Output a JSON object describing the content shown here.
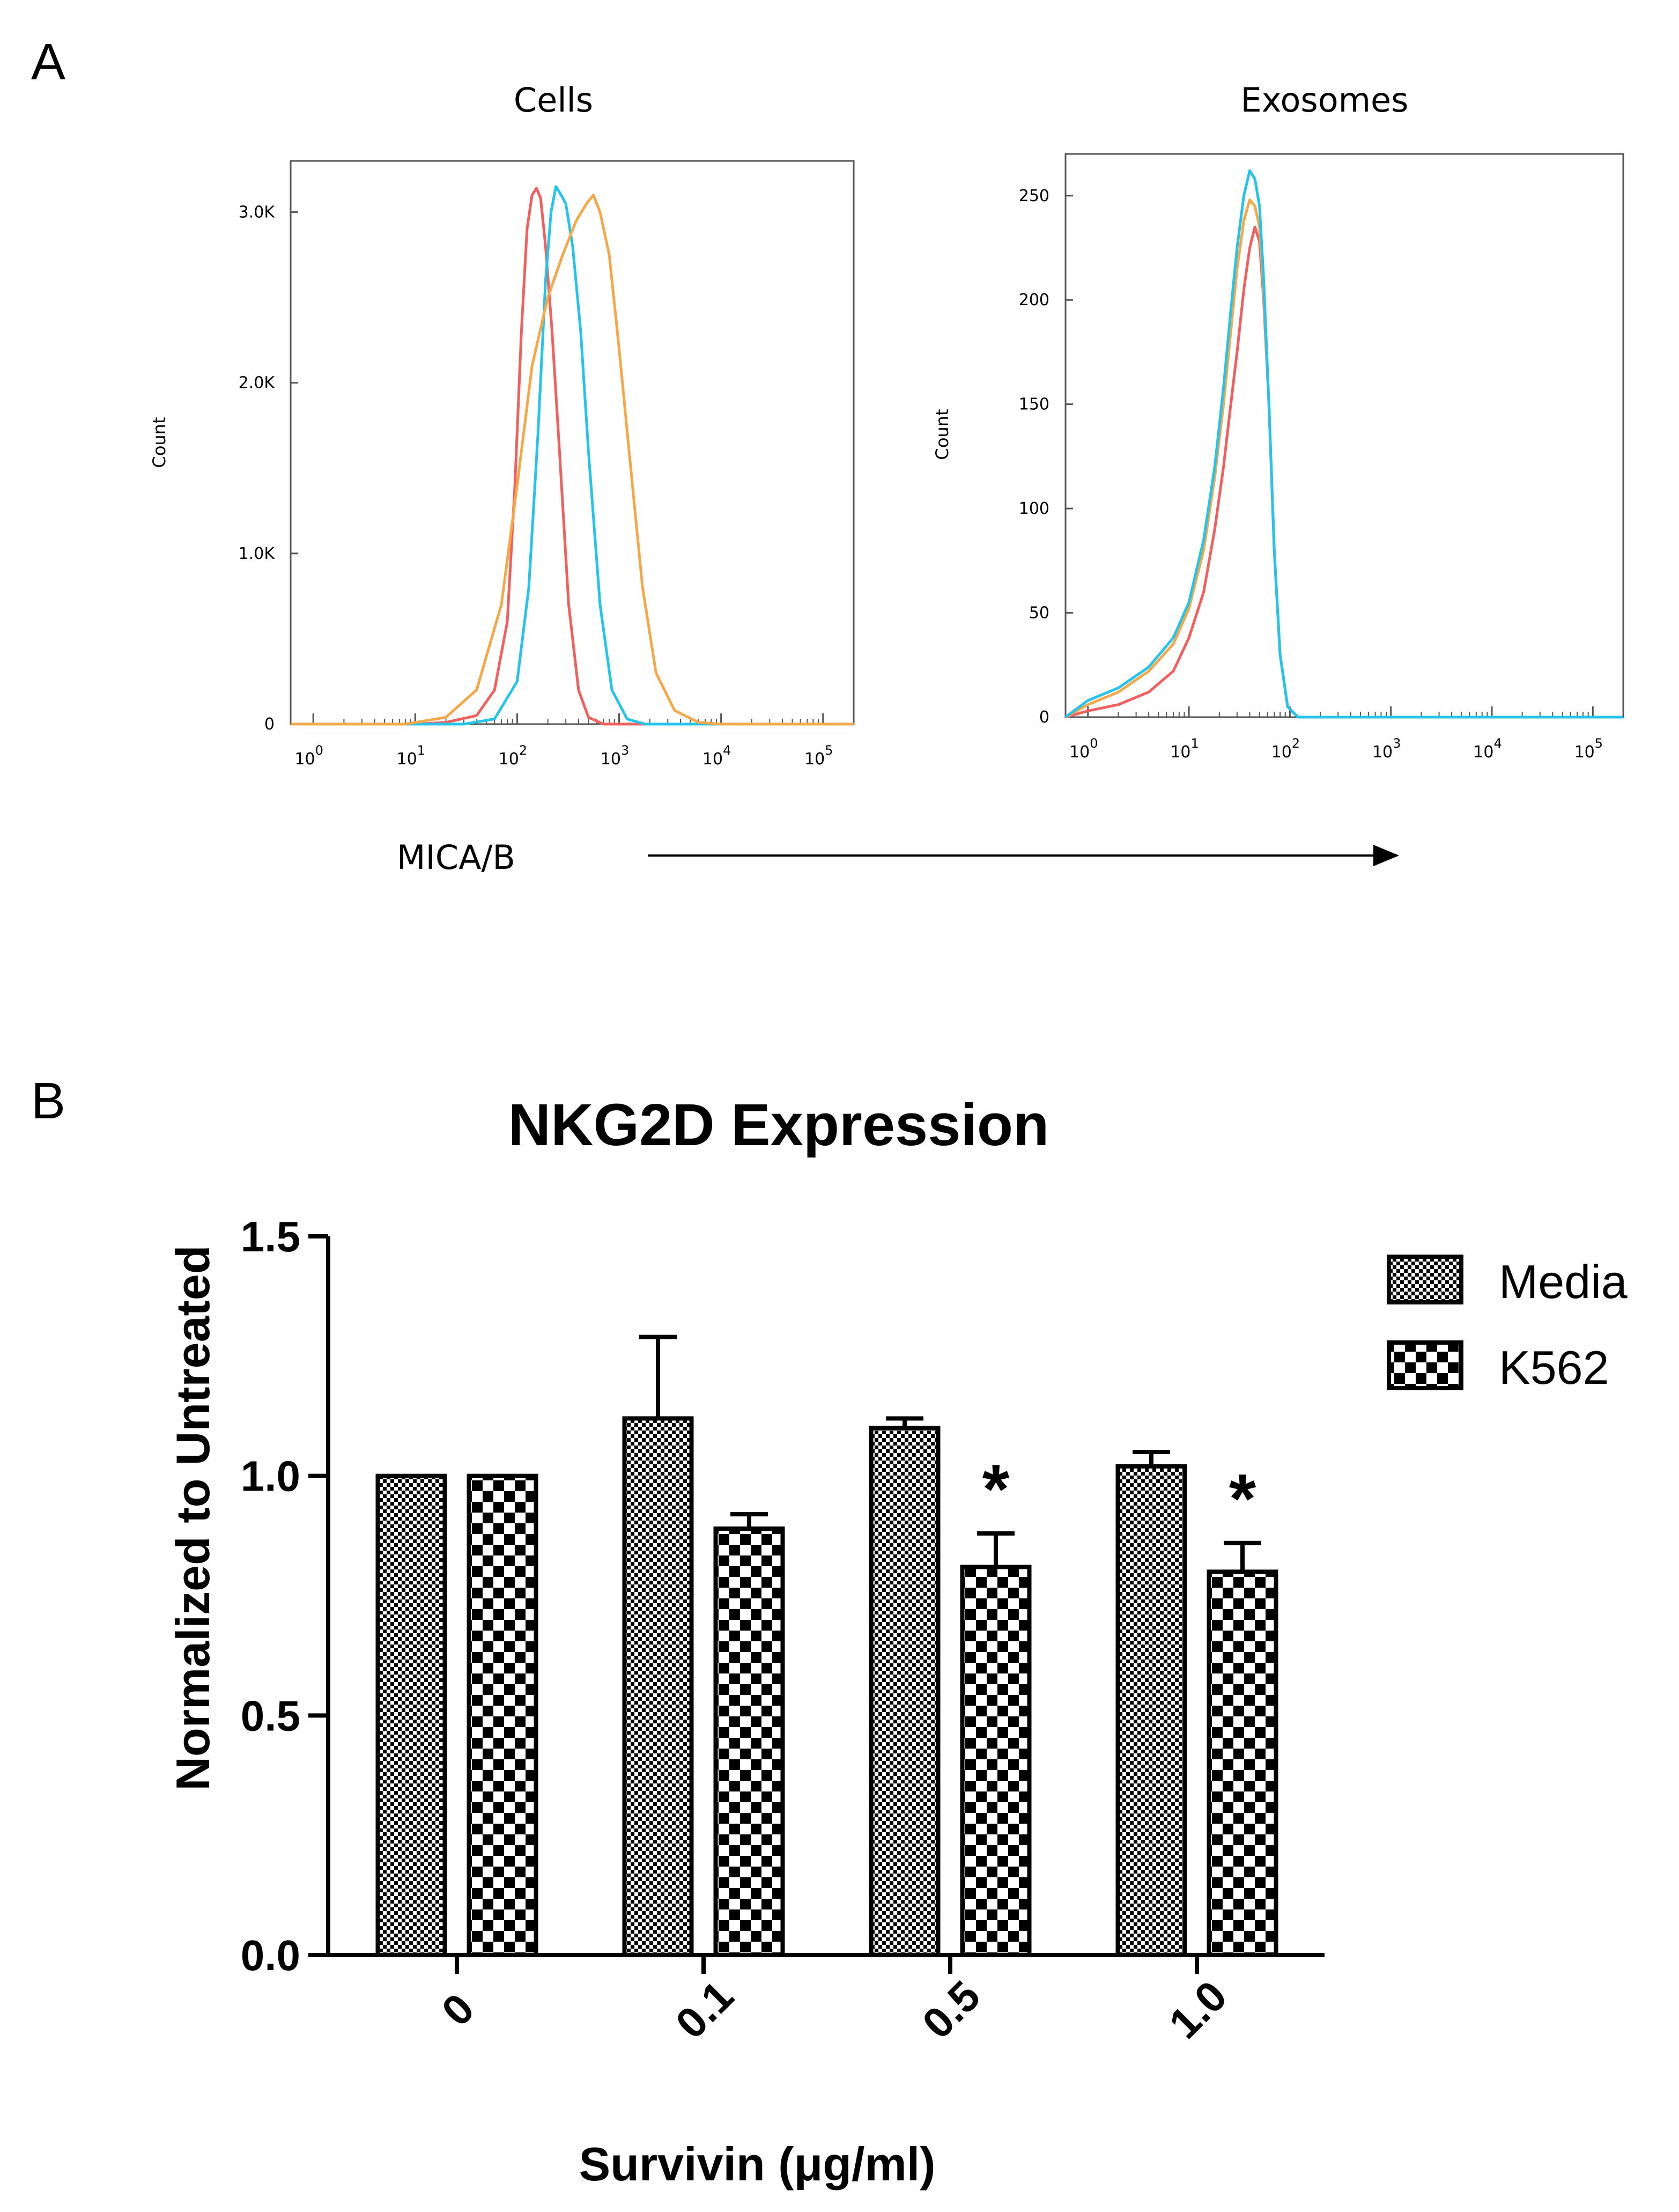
{
  "panel_a_label": "A",
  "panel_b_label": "B",
  "x_axis_label": "MICA/B",
  "chart_data": [
    {
      "type": "line",
      "chart": "flow-histogram",
      "title": "Cells",
      "ylabel": "Count",
      "x_scale": "log10",
      "xlim": [
        0.6,
        200000
      ],
      "ylim": [
        0,
        3300
      ],
      "y_ticks": [
        {
          "v": 0,
          "label": "0"
        },
        {
          "v": 1000,
          "label": "1.0K"
        },
        {
          "v": 2000,
          "label": "2.0K"
        },
        {
          "v": 3000,
          "label": "3.0K"
        }
      ],
      "x_ticks": [
        {
          "v": 1,
          "base": "10",
          "exp": "0"
        },
        {
          "v": 10,
          "base": "10",
          "exp": "1"
        },
        {
          "v": 100,
          "base": "10",
          "exp": "2"
        },
        {
          "v": 1000,
          "base": "10",
          "exp": "3"
        },
        {
          "v": 10000,
          "base": "10",
          "exp": "4"
        },
        {
          "v": 100000,
          "base": "10",
          "exp": "5"
        }
      ],
      "series": [
        {
          "name": "red",
          "color": "#f0605f",
          "points": [
            [
              0.6,
              0
            ],
            [
              10,
              0
            ],
            [
              20,
              10
            ],
            [
              40,
              50
            ],
            [
              60,
              200
            ],
            [
              80,
              600
            ],
            [
              95,
              1400
            ],
            [
              110,
              2300
            ],
            [
              125,
              2900
            ],
            [
              140,
              3100
            ],
            [
              155,
              3140
            ],
            [
              170,
              3080
            ],
            [
              190,
              2800
            ],
            [
              220,
              2300
            ],
            [
              260,
              1600
            ],
            [
              320,
              700
            ],
            [
              400,
              200
            ],
            [
              500,
              40
            ],
            [
              700,
              0
            ],
            [
              200000,
              0
            ]
          ]
        },
        {
          "name": "cyan",
          "color": "#26c4e8",
          "points": [
            [
              0.6,
              0
            ],
            [
              30,
              0
            ],
            [
              60,
              30
            ],
            [
              100,
              250
            ],
            [
              130,
              800
            ],
            [
              160,
              1700
            ],
            [
              190,
              2600
            ],
            [
              215,
              3000
            ],
            [
              240,
              3150
            ],
            [
              270,
              3100
            ],
            [
              300,
              3050
            ],
            [
              350,
              2800
            ],
            [
              420,
              2300
            ],
            [
              500,
              1600
            ],
            [
              650,
              700
            ],
            [
              850,
              200
            ],
            [
              1200,
              30
            ],
            [
              1800,
              0
            ],
            [
              200000,
              0
            ]
          ]
        },
        {
          "name": "orange",
          "color": "#f5a84a",
          "points": [
            [
              0.6,
              0
            ],
            [
              8,
              0
            ],
            [
              20,
              40
            ],
            [
              40,
              200
            ],
            [
              70,
              700
            ],
            [
              100,
              1400
            ],
            [
              140,
              2100
            ],
            [
              200,
              2500
            ],
            [
              280,
              2750
            ],
            [
              380,
              2950
            ],
            [
              480,
              3050
            ],
            [
              560,
              3100
            ],
            [
              650,
              3000
            ],
            [
              800,
              2750
            ],
            [
              1000,
              2200
            ],
            [
              1300,
              1500
            ],
            [
              1700,
              800
            ],
            [
              2300,
              300
            ],
            [
              3500,
              80
            ],
            [
              6000,
              10
            ],
            [
              10000,
              0
            ],
            [
              200000,
              0
            ]
          ]
        }
      ]
    },
    {
      "type": "line",
      "chart": "flow-histogram",
      "title": "Exosomes",
      "ylabel": "Count",
      "x_scale": "log10",
      "xlim": [
        0.6,
        200000
      ],
      "ylim": [
        0,
        270
      ],
      "y_ticks": [
        {
          "v": 0,
          "label": "0"
        },
        {
          "v": 50,
          "label": "50"
        },
        {
          "v": 100,
          "label": "100"
        },
        {
          "v": 150,
          "label": "150"
        },
        {
          "v": 200,
          "label": "200"
        },
        {
          "v": 250,
          "label": "250"
        }
      ],
      "x_ticks": [
        {
          "v": 1,
          "base": "10",
          "exp": "0"
        },
        {
          "v": 10,
          "base": "10",
          "exp": "1"
        },
        {
          "v": 100,
          "base": "10",
          "exp": "2"
        },
        {
          "v": 1000,
          "base": "10",
          "exp": "3"
        },
        {
          "v": 10000,
          "base": "10",
          "exp": "4"
        },
        {
          "v": 100000,
          "base": "10",
          "exp": "5"
        }
      ],
      "series": [
        {
          "name": "red",
          "color": "#f0605f",
          "points": [
            [
              0.6,
              0
            ],
            [
              1,
              3
            ],
            [
              2,
              6
            ],
            [
              4,
              12
            ],
            [
              7,
              22
            ],
            [
              10,
              38
            ],
            [
              14,
              60
            ],
            [
              18,
              90
            ],
            [
              22,
              120
            ],
            [
              26,
              150
            ],
            [
              30,
              175
            ],
            [
              35,
              205
            ],
            [
              40,
              225
            ],
            [
              45,
              235
            ],
            [
              50,
              228
            ],
            [
              55,
              200
            ],
            [
              62,
              150
            ],
            [
              70,
              80
            ],
            [
              80,
              30
            ],
            [
              95,
              5
            ],
            [
              120,
              0
            ],
            [
              200000,
              0
            ]
          ]
        },
        {
          "name": "orange",
          "color": "#f5a84a",
          "points": [
            [
              0.6,
              0
            ],
            [
              1,
              6
            ],
            [
              2,
              12
            ],
            [
              4,
              22
            ],
            [
              7,
              35
            ],
            [
              10,
              52
            ],
            [
              14,
              80
            ],
            [
              18,
              115
            ],
            [
              22,
              150
            ],
            [
              26,
              185
            ],
            [
              30,
              215
            ],
            [
              35,
              238
            ],
            [
              40,
              248
            ],
            [
              45,
              245
            ],
            [
              50,
              235
            ],
            [
              55,
              205
            ],
            [
              62,
              150
            ],
            [
              70,
              80
            ],
            [
              80,
              30
            ],
            [
              95,
              5
            ],
            [
              120,
              0
            ],
            [
              200000,
              0
            ]
          ]
        },
        {
          "name": "cyan",
          "color": "#26c4e8",
          "points": [
            [
              0.6,
              0
            ],
            [
              1,
              8
            ],
            [
              2,
              14
            ],
            [
              4,
              24
            ],
            [
              7,
              38
            ],
            [
              10,
              55
            ],
            [
              14,
              85
            ],
            [
              18,
              120
            ],
            [
              22,
              158
            ],
            [
              26,
              195
            ],
            [
              30,
              225
            ],
            [
              35,
              250
            ],
            [
              40,
              262
            ],
            [
              45,
              258
            ],
            [
              50,
              245
            ],
            [
              55,
              210
            ],
            [
              62,
              150
            ],
            [
              70,
              80
            ],
            [
              80,
              30
            ],
            [
              95,
              5
            ],
            [
              120,
              0
            ],
            [
              200000,
              0
            ]
          ]
        }
      ]
    },
    {
      "type": "bar",
      "title": "NKG2D Expression",
      "xlabel": "Survivin (μg/ml)",
      "ylabel": "Normalized to Untreated",
      "ylim": [
        0,
        1.5
      ],
      "y_ticks": [
        "0.0",
        "0.5",
        "1.0",
        "1.5"
      ],
      "categories": [
        "0",
        "0.1",
        "0.5",
        "1.0"
      ],
      "series": [
        {
          "name": "Media",
          "values": [
            1.0,
            1.12,
            1.1,
            1.02
          ],
          "errors": [
            0,
            0.17,
            0.02,
            0.03
          ],
          "significant": [
            false,
            false,
            false,
            false
          ]
        },
        {
          "name": "K562",
          "values": [
            1.0,
            0.89,
            0.81,
            0.8
          ],
          "errors": [
            0,
            0.03,
            0.07,
            0.06
          ],
          "significant": [
            false,
            false,
            true,
            true
          ]
        }
      ],
      "significance_marker": "*"
    }
  ]
}
